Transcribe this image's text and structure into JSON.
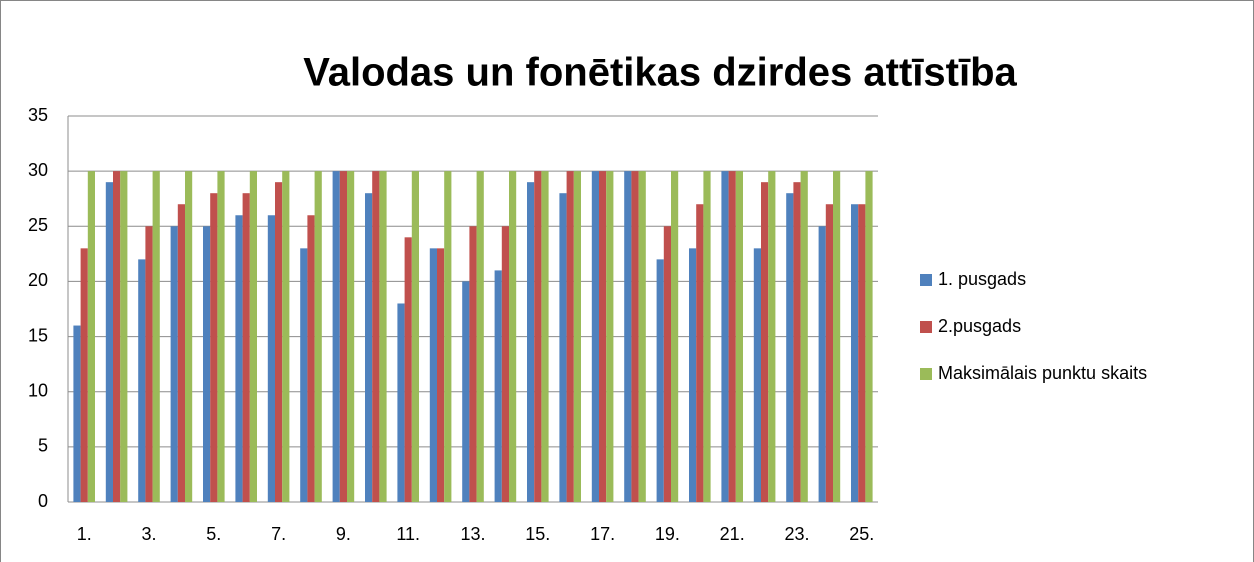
{
  "chart_data": {
    "type": "bar",
    "title": "Valodas un fonētikas dzirdes attīstība",
    "categories": [
      "1.",
      null,
      "3.",
      null,
      "5.",
      null,
      "7.",
      null,
      "9.",
      null,
      "11.",
      null,
      "13.",
      null,
      "15.",
      null,
      "17.",
      null,
      "19.",
      null,
      "21.",
      null,
      "23.",
      null,
      "25."
    ],
    "series": [
      {
        "name": "1. pusgads",
        "color": "#4f81bd",
        "values": [
          16,
          29,
          22,
          25,
          25,
          26,
          26,
          23,
          30,
          28,
          18,
          23,
          20,
          21,
          29,
          28,
          30,
          30,
          22,
          23,
          30,
          23,
          28,
          25,
          27
        ]
      },
      {
        "name": "2.pusgads",
        "color": "#c0504d",
        "values": [
          23,
          30,
          25,
          27,
          28,
          28,
          29,
          26,
          30,
          30,
          24,
          23,
          25,
          25,
          30,
          30,
          30,
          30,
          25,
          27,
          30,
          29,
          29,
          27,
          27
        ]
      },
      {
        "name": "Maksimālais punktu skaits",
        "color": "#9bbb59",
        "values": [
          30,
          30,
          30,
          30,
          30,
          30,
          30,
          30,
          30,
          30,
          30,
          30,
          30,
          30,
          30,
          30,
          30,
          30,
          30,
          30,
          30,
          30,
          30,
          30,
          30
        ]
      }
    ],
    "ylim": [
      0,
      35
    ],
    "yticks": [
      0,
      5,
      10,
      15,
      20,
      25,
      30,
      35
    ],
    "grid": true,
    "legend": "right"
  }
}
